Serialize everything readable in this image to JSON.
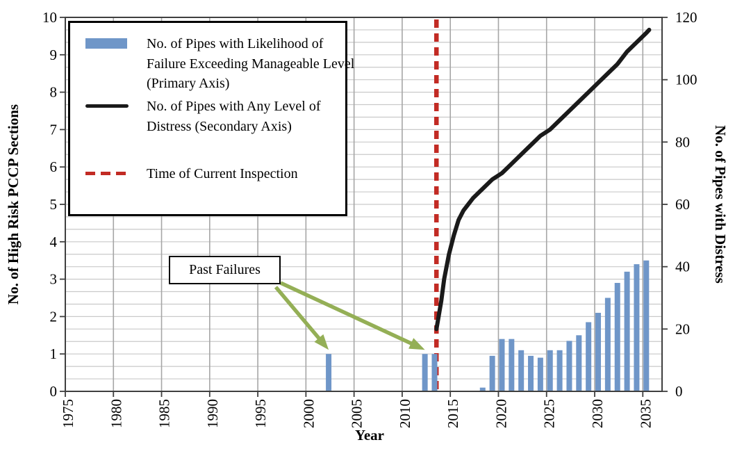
{
  "colors": {
    "bar": "#6F96C8",
    "line": "#1A1A1A",
    "inspection": "#C22B24",
    "annotation_arrow": "#94AF56",
    "gridline_h": "#C9C9C9",
    "gridline_v": "#A6A6A6",
    "axis": "#3F3F3F",
    "text": "#000000"
  },
  "legend": {
    "items": [
      {
        "label": "No. of Pipes with Likelihood of Failure Exceeding Manageable Level (Primary Axis)",
        "swatch": "bar",
        "color": "#6F96C8"
      },
      {
        "label": "No. of Pipes with Any Level of Distress (Secondary Axis)",
        "swatch": "line",
        "color": "#1A1A1A"
      },
      {
        "label": "Time of Current Inspection",
        "swatch": "dashed-line",
        "color": "#C22B24"
      }
    ]
  },
  "annotation": {
    "label": "Past Failures",
    "points_to_years": [
      2002,
      2012
    ],
    "points_to_value": 1
  },
  "axes": {
    "left": {
      "title": "No. of High Risk PCCP Sections",
      "ticks": [
        0,
        1,
        2,
        3,
        4,
        5,
        6,
        7,
        8,
        9,
        10
      ]
    },
    "right": {
      "title": "No. of Pipes with Distress",
      "ticks": [
        0,
        20,
        40,
        60,
        80,
        100,
        120
      ]
    },
    "bottom": {
      "title": "Year",
      "ticks": [
        1975,
        1980,
        1985,
        1990,
        1995,
        2000,
        2005,
        2010,
        2015,
        2020,
        2025,
        2030,
        2035
      ]
    }
  },
  "chart_data": {
    "type": "bar+line",
    "title": "",
    "xlabel": "Year",
    "x_range": [
      1975,
      2037
    ],
    "primary_axis": {
      "label": "No. of High Risk PCCP Sections",
      "range": [
        0,
        10
      ],
      "tick_step": 1
    },
    "secondary_axis": {
      "label": "No. of Pipes with Distress",
      "range": [
        0,
        120
      ],
      "tick_step": 20,
      "minor_gridline_step": 4
    },
    "grid": "on",
    "legend_position": "upper-left-inside",
    "bar_series": {
      "name": "No. of Pipes with Likelihood of Failure Exceeding Manageable Level (Primary Axis)",
      "axis": "primary",
      "points": [
        [
          2002,
          1
        ],
        [
          2012,
          1
        ],
        [
          2013,
          1
        ],
        [
          2018,
          0.1
        ],
        [
          2019,
          0.95
        ],
        [
          2020,
          1.4
        ],
        [
          2021,
          1.4
        ],
        [
          2022,
          1.1
        ],
        [
          2023,
          0.95
        ],
        [
          2024,
          0.9
        ],
        [
          2025,
          1.1
        ],
        [
          2026,
          1.1
        ],
        [
          2027,
          1.35
        ],
        [
          2028,
          1.5
        ],
        [
          2029,
          1.85
        ],
        [
          2030,
          2.1
        ],
        [
          2031,
          2.5
        ],
        [
          2032,
          2.9
        ],
        [
          2033,
          3.2
        ],
        [
          2034,
          3.4
        ],
        [
          2035,
          3.5
        ]
      ]
    },
    "line_series": {
      "name": "No. of Pipes with Any Level of Distress (Secondary Axis)",
      "axis": "secondary",
      "points": [
        [
          2013.2,
          20
        ],
        [
          2013.7,
          29
        ],
        [
          2014,
          36
        ],
        [
          2014.5,
          44
        ],
        [
          2015,
          50
        ],
        [
          2015.5,
          55
        ],
        [
          2016,
          58
        ],
        [
          2016.5,
          60
        ],
        [
          2017,
          62
        ],
        [
          2018,
          65
        ],
        [
          2019,
          68
        ],
        [
          2020,
          70
        ],
        [
          2021,
          73
        ],
        [
          2022,
          76
        ],
        [
          2023,
          79
        ],
        [
          2024,
          82
        ],
        [
          2025,
          84
        ],
        [
          2026,
          87
        ],
        [
          2027,
          90
        ],
        [
          2028,
          93
        ],
        [
          2029,
          96
        ],
        [
          2030,
          99
        ],
        [
          2031,
          102
        ],
        [
          2032,
          105
        ],
        [
          2033,
          109
        ],
        [
          2034,
          112
        ],
        [
          2035,
          115
        ],
        [
          2035.3,
          116
        ]
      ]
    },
    "inspection_line": {
      "label": "Time of Current Inspection",
      "year": 2013.2
    }
  }
}
